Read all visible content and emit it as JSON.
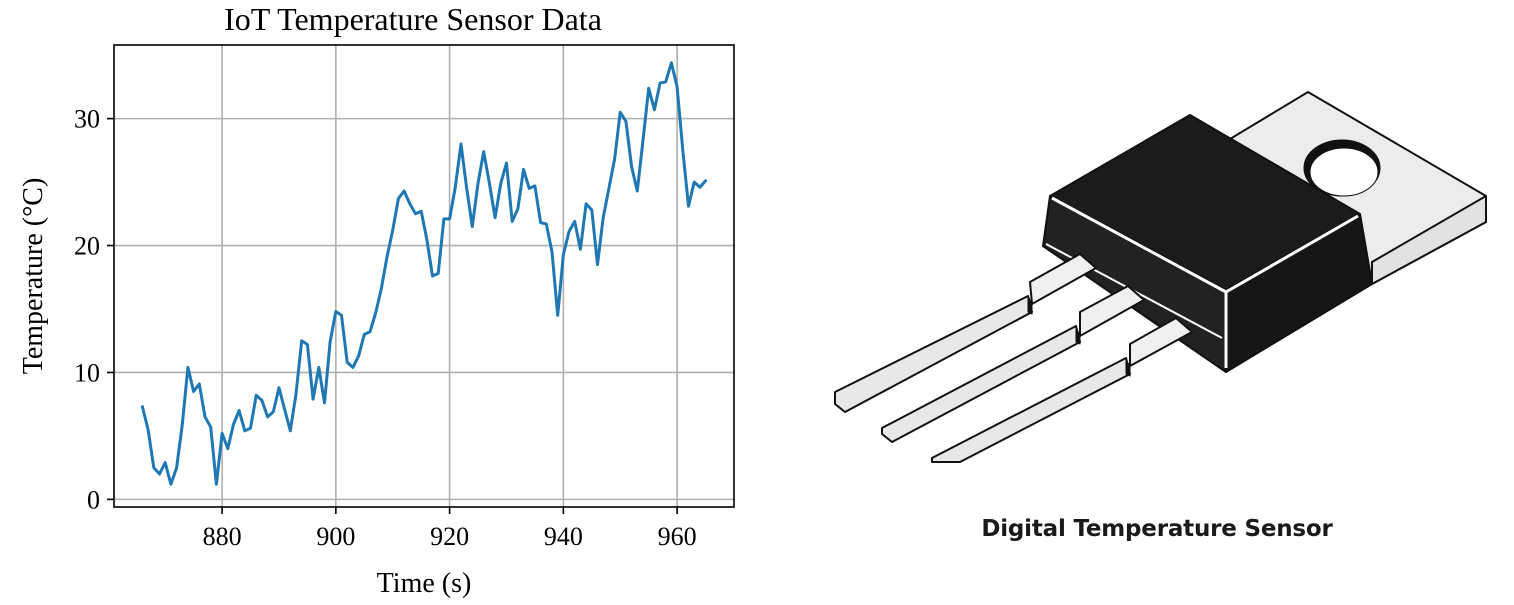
{
  "chart_data": {
    "type": "line",
    "title": "IoT Temperature Sensor Data",
    "xlabel": "Time (s)",
    "ylabel": "Temperature (°C)",
    "xlim": [
      861,
      970
    ],
    "ylim": [
      -0.6,
      35.8
    ],
    "grid": true,
    "x_ticks": [
      880,
      900,
      920,
      940,
      960
    ],
    "y_ticks": [
      0,
      10,
      20,
      30
    ],
    "series": [
      {
        "color": "#1f77b4",
        "x": [
          866,
          867,
          868,
          869,
          870,
          871,
          872,
          873,
          874,
          875,
          876,
          877,
          878,
          879,
          880,
          881,
          882,
          883,
          884,
          885,
          886,
          887,
          888,
          889,
          890,
          891,
          892,
          893,
          894,
          895,
          896,
          897,
          898,
          899,
          900,
          901,
          902,
          903,
          904,
          905,
          906,
          907,
          908,
          909,
          910,
          911,
          912,
          913,
          914,
          915,
          916,
          917,
          918,
          919,
          920,
          921,
          922,
          923,
          924,
          925,
          926,
          927,
          928,
          929,
          930,
          931,
          932,
          933,
          934,
          935,
          936,
          937,
          938,
          939,
          940,
          941,
          942,
          943,
          944,
          945,
          946,
          947,
          948,
          949,
          950,
          951,
          952,
          953,
          954,
          955,
          956,
          957,
          958,
          959,
          960,
          961,
          962,
          963,
          964,
          965
        ],
        "y": [
          7.3,
          5.5,
          2.5,
          2.0,
          2.9,
          1.2,
          2.5,
          5.9,
          10.4,
          8.5,
          9.1,
          6.5,
          5.7,
          1.2,
          5.2,
          4.0,
          5.9,
          7.0,
          5.4,
          5.6,
          8.2,
          7.8,
          6.5,
          6.9,
          8.8,
          7.1,
          5.4,
          8.3,
          12.5,
          12.2,
          7.9,
          10.4,
          7.6,
          12.4,
          14.8,
          14.5,
          10.8,
          10.4,
          11.3,
          13.0,
          13.2,
          14.7,
          16.6,
          19.1,
          21.2,
          23.7,
          24.3,
          23.3,
          22.5,
          22.7,
          20.5,
          17.6,
          17.8,
          22.1,
          22.1,
          24.6,
          28.0,
          24.5,
          21.5,
          24.9,
          27.4,
          24.9,
          22.2,
          24.9,
          26.5,
          21.9,
          22.9,
          26.0,
          24.5,
          24.7,
          21.8,
          21.7,
          19.5,
          14.5,
          19.3,
          21.1,
          21.9,
          19.7,
          23.3,
          22.8,
          18.5,
          22.2,
          24.5,
          26.8,
          30.5,
          29.8,
          26.2,
          24.3,
          28.3,
          32.4,
          30.7,
          32.8,
          32.9,
          34.4,
          32.5,
          27.5,
          23.1,
          25.0,
          24.6,
          25.1
        ]
      }
    ]
  },
  "product": {
    "caption": "Digital Temperature Sensor",
    "icon": "to-220-sensor-package"
  }
}
